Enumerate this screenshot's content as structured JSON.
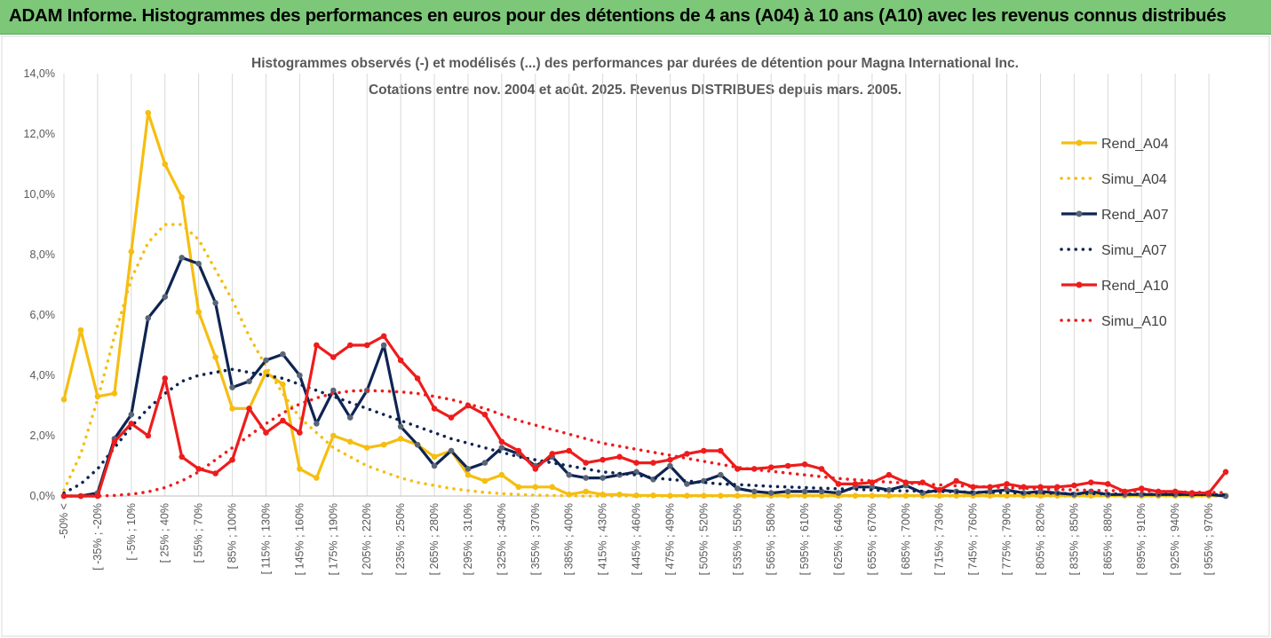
{
  "header": {
    "title": "ADAM Informe. Histogrammes des performances en euros pour des détentions de 4 ans (A04) à 10 ans (A10) avec les revenus connus distribués",
    "bg_color": "#7CC878"
  },
  "chart_data": {
    "type": "line",
    "title": "Histogrammes observés (-) et modélisés (...) des performances par durées de détention pour Magna International Inc.",
    "subtitle": "Cotations entre nov. 2004 et août. 2025. Revenus DISTRIBUES depuis mars. 2005.",
    "ylim": [
      0,
      14
    ],
    "y_ticks": [
      "0,0%",
      "2,0%",
      "4,0%",
      "6,0%",
      "8,0%",
      "10,0%",
      "12,0%",
      "14,0%"
    ],
    "y_tick_values": [
      0,
      2,
      4,
      6,
      8,
      10,
      12,
      14
    ],
    "x_tick_labels": [
      "-50% <",
      "[ -35% ; -20%",
      "[ -5% ; 10%",
      "[ 25% ; 40%",
      "[ 55% ; 70%",
      "[ 85% ; 100%",
      "[ 115% ; 130%",
      "[ 145% ; 160%",
      "[ 175% ; 190%",
      "[ 205% ; 220%",
      "[ 235% ; 250%",
      "[ 265% ; 280%",
      "[ 295% ; 310%",
      "[ 325% ; 340%",
      "[ 355% ; 370%",
      "[ 385% ; 400%",
      "[ 415% ; 430%",
      "[ 445% ; 460%",
      "[ 475% ; 490%",
      "[ 505% ; 520%",
      "[ 535% ; 550%",
      "[ 565% ; 580%",
      "[ 595% ; 610%",
      "[ 625% ; 640%",
      "[ 655% ; 670%",
      "[ 685% ; 700%",
      "[ 715% ; 730%",
      "[ 745% ; 760%",
      "[ 775% ; 790%",
      "[ 805% ; 820%",
      "[ 835% ; 850%",
      "[ 865% ; 880%",
      "[ 895% ; 910%",
      "[ 925% ; 940%",
      "[ 955% ; 970%"
    ],
    "n_points": 70,
    "grid": "vertical",
    "legend_position": "right",
    "series": [
      {
        "name": "Rend_A04",
        "style": "solid",
        "color": "#F5BE10",
        "values": [
          3.2,
          5.5,
          3.3,
          3.4,
          8.1,
          12.7,
          11.0,
          9.9,
          6.1,
          4.6,
          2.9,
          2.9,
          4.1,
          3.7,
          0.9,
          0.6,
          2.0,
          1.8,
          1.6,
          1.7,
          1.9,
          1.7,
          1.3,
          1.5,
          0.7,
          0.5,
          0.7,
          0.3,
          0.3,
          0.3,
          0.05,
          0.15,
          0.05,
          0.05,
          0.02,
          0.02,
          0.01,
          0.01,
          0.01,
          0.01,
          0.01,
          0.01,
          0.01,
          0.01,
          0.01,
          0.01,
          0.01,
          0.01,
          0.01,
          0.01,
          0.01,
          0.01,
          0.01,
          0.01,
          0.01,
          0.01,
          0.01,
          0.01,
          0.01,
          0.01,
          0.01,
          0.01,
          0.01,
          0.01,
          0.01,
          0.01,
          0.01,
          0.01,
          0.01,
          0.01
        ]
      },
      {
        "name": "Simu_A04",
        "style": "dotted",
        "color": "#F5BE10",
        "values": [
          0.2,
          1.4,
          3.2,
          5.3,
          7.2,
          8.4,
          9.0,
          9.0,
          8.5,
          7.5,
          6.5,
          5.3,
          4.3,
          3.4,
          2.6,
          2.1,
          1.6,
          1.3,
          1.0,
          0.8,
          0.6,
          0.45,
          0.35,
          0.25,
          0.18,
          0.12,
          0.08,
          0.05,
          0.03,
          0.02,
          0.01,
          0.0,
          0.0,
          0.0,
          0.0,
          0.0,
          0.0,
          0.0,
          0.0,
          0.0,
          0.0,
          0.0,
          0.0,
          0.0,
          0.0,
          0.0,
          0.0,
          0.0,
          0.0,
          0.0,
          0.0,
          0.0,
          0.0,
          0.0,
          0.0,
          0.0,
          0.0,
          0.0,
          0.0,
          0.0,
          0.0,
          0.0,
          0.0,
          0.0,
          0.0,
          0.0,
          0.0,
          0.0,
          0.0,
          0.0
        ]
      },
      {
        "name": "Rend_A07",
        "style": "solid",
        "color": "#0E2452",
        "values": [
          0.0,
          0.0,
          0.1,
          1.9,
          2.7,
          5.9,
          6.6,
          7.9,
          7.7,
          6.4,
          3.6,
          3.8,
          4.5,
          4.7,
          4.0,
          2.4,
          3.5,
          2.6,
          3.5,
          5.0,
          2.3,
          1.7,
          1.0,
          1.5,
          0.9,
          1.1,
          1.6,
          1.4,
          1.0,
          1.3,
          0.7,
          0.6,
          0.6,
          0.7,
          0.8,
          0.55,
          1.0,
          0.4,
          0.5,
          0.7,
          0.25,
          0.15,
          0.1,
          0.15,
          0.15,
          0.15,
          0.1,
          0.3,
          0.3,
          0.2,
          0.35,
          0.1,
          0.2,
          0.15,
          0.1,
          0.15,
          0.2,
          0.1,
          0.15,
          0.1,
          0.05,
          0.15,
          0.05,
          0.05,
          0.05,
          0.05,
          0.05,
          0.05,
          0.05,
          0.0
        ]
      },
      {
        "name": "Simu_A07",
        "style": "dotted",
        "color": "#0E2452",
        "values": [
          0.1,
          0.4,
          0.9,
          1.6,
          2.3,
          2.9,
          3.4,
          3.8,
          4.0,
          4.1,
          4.2,
          4.1,
          4.0,
          3.9,
          3.7,
          3.5,
          3.3,
          3.1,
          2.9,
          2.7,
          2.5,
          2.3,
          2.1,
          1.9,
          1.75,
          1.6,
          1.45,
          1.3,
          1.2,
          1.1,
          1.0,
          0.9,
          0.8,
          0.75,
          0.7,
          0.6,
          0.55,
          0.5,
          0.45,
          0.4,
          0.38,
          0.35,
          0.32,
          0.3,
          0.28,
          0.26,
          0.24,
          0.22,
          0.2,
          0.18,
          0.17,
          0.16,
          0.15,
          0.14,
          0.13,
          0.12,
          0.11,
          0.1,
          0.1,
          0.09,
          0.08,
          0.08,
          0.07,
          0.07,
          0.06,
          0.06,
          0.05,
          0.05,
          0.05,
          0.04
        ]
      },
      {
        "name": "Rend_A10",
        "style": "solid",
        "color": "#EE1C1C",
        "values": [
          0.0,
          0.0,
          0.0,
          1.8,
          2.4,
          2.0,
          3.9,
          1.3,
          0.9,
          0.75,
          1.2,
          2.9,
          2.1,
          2.5,
          2.1,
          5.0,
          4.6,
          5.0,
          5.0,
          5.3,
          4.5,
          3.9,
          2.9,
          2.6,
          3.0,
          2.7,
          1.8,
          1.5,
          0.9,
          1.4,
          1.5,
          1.1,
          1.2,
          1.3,
          1.1,
          1.1,
          1.2,
          1.4,
          1.5,
          1.5,
          0.9,
          0.9,
          0.95,
          1.0,
          1.05,
          0.9,
          0.4,
          0.4,
          0.45,
          0.7,
          0.45,
          0.45,
          0.2,
          0.5,
          0.3,
          0.3,
          0.4,
          0.3,
          0.3,
          0.3,
          0.35,
          0.45,
          0.4,
          0.15,
          0.25,
          0.15,
          0.15,
          0.1,
          0.1,
          0.8
        ]
      },
      {
        "name": "Simu_A10",
        "style": "dotted",
        "color": "#EE1C1C",
        "values": [
          0.0,
          0.0,
          0.0,
          0.02,
          0.06,
          0.14,
          0.28,
          0.5,
          0.8,
          1.2,
          1.6,
          2.0,
          2.4,
          2.75,
          3.05,
          3.25,
          3.4,
          3.48,
          3.5,
          3.48,
          3.45,
          3.4,
          3.3,
          3.2,
          3.05,
          2.9,
          2.7,
          2.5,
          2.35,
          2.2,
          2.05,
          1.9,
          1.75,
          1.65,
          1.55,
          1.45,
          1.35,
          1.25,
          1.15,
          1.05,
          0.95,
          0.88,
          0.82,
          0.76,
          0.7,
          0.64,
          0.58,
          0.54,
          0.5,
          0.46,
          0.43,
          0.4,
          0.37,
          0.34,
          0.32,
          0.3,
          0.28,
          0.26,
          0.24,
          0.22,
          0.2,
          0.19,
          0.18,
          0.17,
          0.16,
          0.15,
          0.14,
          0.13,
          0.12,
          0.11
        ]
      }
    ]
  }
}
